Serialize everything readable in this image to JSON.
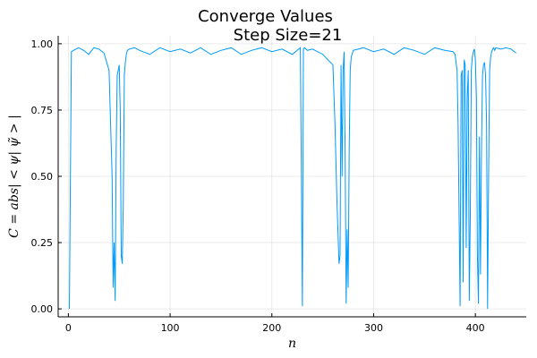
{
  "chart_data": {
    "type": "line",
    "title": "Converge Values",
    "subtitle": "Step Size=21",
    "xlabel": "n",
    "ylabel": "C = abs| < ψ| ψ̃ > |",
    "xlim": [
      -10,
      450
    ],
    "ylim": [
      -0.03,
      1.03
    ],
    "xticks": [
      0,
      100,
      200,
      300,
      400
    ],
    "xtick_labels": [
      "0",
      "100",
      "200",
      "300",
      "400"
    ],
    "yticks": [
      0.0,
      0.25,
      0.5,
      0.75,
      1.0
    ],
    "ytick_labels": [
      "0.00",
      "0.25",
      "0.50",
      "0.75",
      "1.00"
    ],
    "grid": true,
    "line_color": "#009AFA",
    "series": [
      {
        "x": [
          1,
          3,
          5,
          10,
          15,
          20,
          25,
          30,
          35,
          40,
          43,
          44,
          45,
          46,
          47,
          48,
          49,
          50,
          51,
          52,
          53,
          54,
          55,
          56,
          57,
          58,
          60,
          65,
          70,
          80,
          90,
          100,
          110,
          120,
          130,
          140,
          150,
          160,
          170,
          180,
          190,
          200,
          210,
          220,
          228,
          229,
          230,
          231,
          232,
          235,
          240,
          250,
          260,
          262,
          264,
          266,
          267,
          268,
          269,
          270,
          271,
          272,
          273,
          274,
          275,
          276,
          277,
          278,
          280,
          290,
          300,
          310,
          320,
          330,
          340,
          350,
          360,
          370,
          378,
          380,
          382,
          383,
          384,
          385,
          386,
          387,
          388,
          389,
          390,
          391,
          392,
          393,
          394,
          395,
          396,
          397,
          398,
          399,
          400,
          401,
          402,
          403,
          404,
          405,
          406,
          407,
          408,
          409,
          410,
          411,
          412,
          413,
          414,
          415,
          416,
          417,
          418,
          419,
          420,
          425,
          430,
          435,
          440
        ],
        "y": [
          0.0,
          0.97,
          0.975,
          0.985,
          0.975,
          0.96,
          0.985,
          0.98,
          0.965,
          0.9,
          0.5,
          0.08,
          0.25,
          0.03,
          0.6,
          0.88,
          0.9,
          0.92,
          0.75,
          0.2,
          0.17,
          0.4,
          0.88,
          0.93,
          0.96,
          0.975,
          0.98,
          0.985,
          0.975,
          0.96,
          0.985,
          0.97,
          0.98,
          0.965,
          0.985,
          0.96,
          0.975,
          0.985,
          0.96,
          0.975,
          0.985,
          0.97,
          0.98,
          0.96,
          0.985,
          0.5,
          0.01,
          0.98,
          0.985,
          0.975,
          0.98,
          0.96,
          0.92,
          0.7,
          0.4,
          0.17,
          0.2,
          0.92,
          0.5,
          0.9,
          0.97,
          0.6,
          0.02,
          0.3,
          0.08,
          0.6,
          0.9,
          0.95,
          0.975,
          0.985,
          0.97,
          0.98,
          0.96,
          0.985,
          0.975,
          0.96,
          0.985,
          0.975,
          0.97,
          0.96,
          0.9,
          0.7,
          0.35,
          0.01,
          0.88,
          0.9,
          0.1,
          0.94,
          0.92,
          0.23,
          0.8,
          0.9,
          0.03,
          0.35,
          0.9,
          0.95,
          0.97,
          0.98,
          0.94,
          0.8,
          0.2,
          0.02,
          0.65,
          0.13,
          0.6,
          0.88,
          0.92,
          0.93,
          0.88,
          0.7,
          0.0,
          0.5,
          0.9,
          0.95,
          0.97,
          0.98,
          0.985,
          0.975,
          0.985,
          0.98,
          0.985,
          0.98,
          0.965
        ]
      }
    ]
  }
}
